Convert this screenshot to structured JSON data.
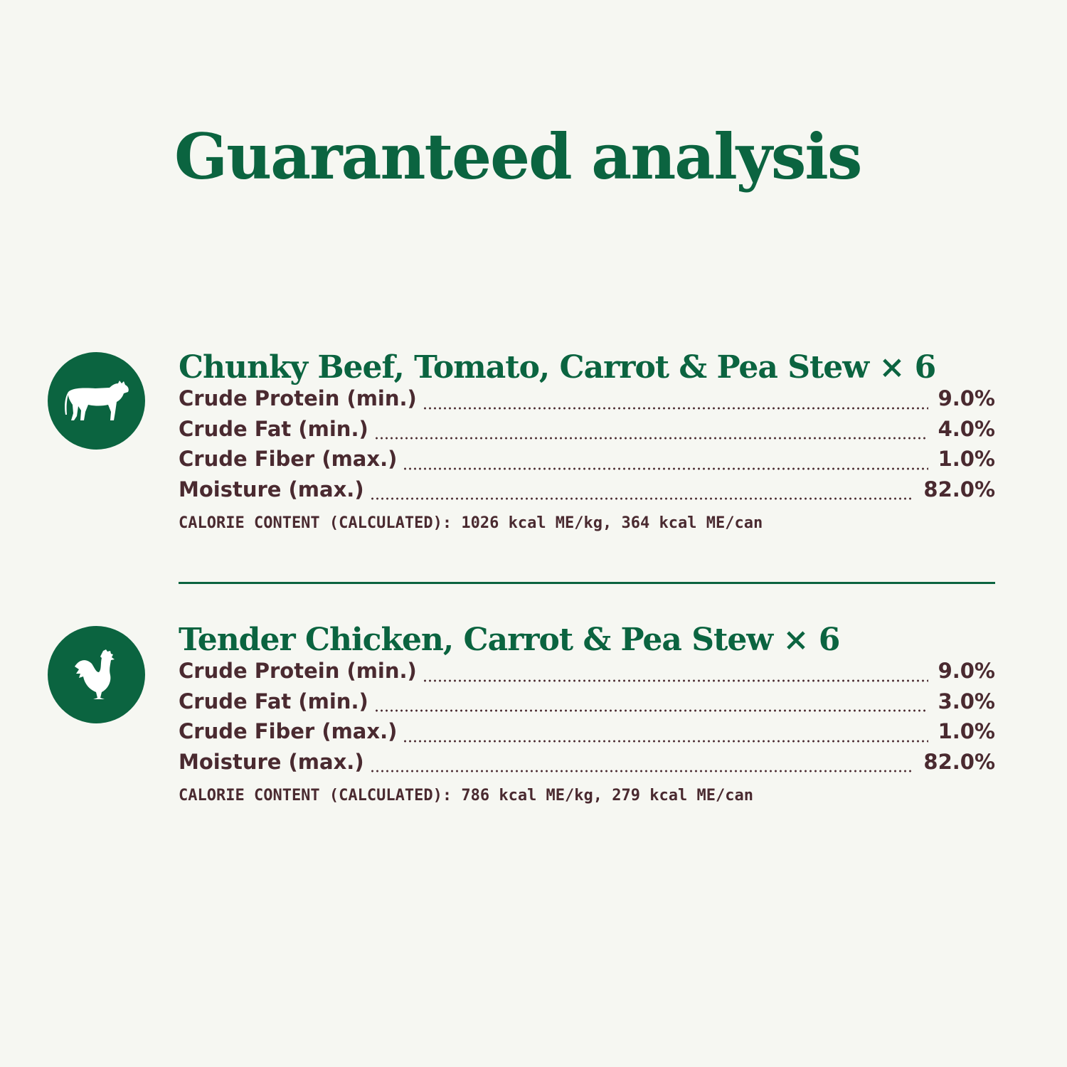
{
  "title": "Guaranteed analysis",
  "colors": {
    "brand_green": "#0b6440",
    "text_brown": "#4a2a30",
    "background": "#f6f7f2"
  },
  "products": [
    {
      "icon": "cow-icon",
      "name": "Chunky Beef, Tomato, Carrot & Pea Stew × 6",
      "rows": [
        {
          "label": "Crude Protein (min.)",
          "value": "9.0%"
        },
        {
          "label": "Crude Fat (min.)",
          "value": "4.0%"
        },
        {
          "label": "Crude Fiber (max.)",
          "value": "1.0%"
        },
        {
          "label": "Moisture (max.)",
          "value": "82.0%"
        }
      ],
      "calorie": "CALORIE CONTENT (CALCULATED): 1026 kcal ME/kg, 364 kcal ME/can"
    },
    {
      "icon": "rooster-icon",
      "name": "Tender Chicken, Carrot & Pea Stew × 6",
      "rows": [
        {
          "label": "Crude Protein (min.)",
          "value": "9.0%"
        },
        {
          "label": "Crude Fat (min.)",
          "value": "3.0%"
        },
        {
          "label": "Crude Fiber (max.)",
          "value": "1.0%"
        },
        {
          "label": "Moisture (max.)",
          "value": "82.0%"
        }
      ],
      "calorie": "CALORIE CONTENT (CALCULATED): 786 kcal ME/kg, 279 kcal ME/can"
    }
  ]
}
